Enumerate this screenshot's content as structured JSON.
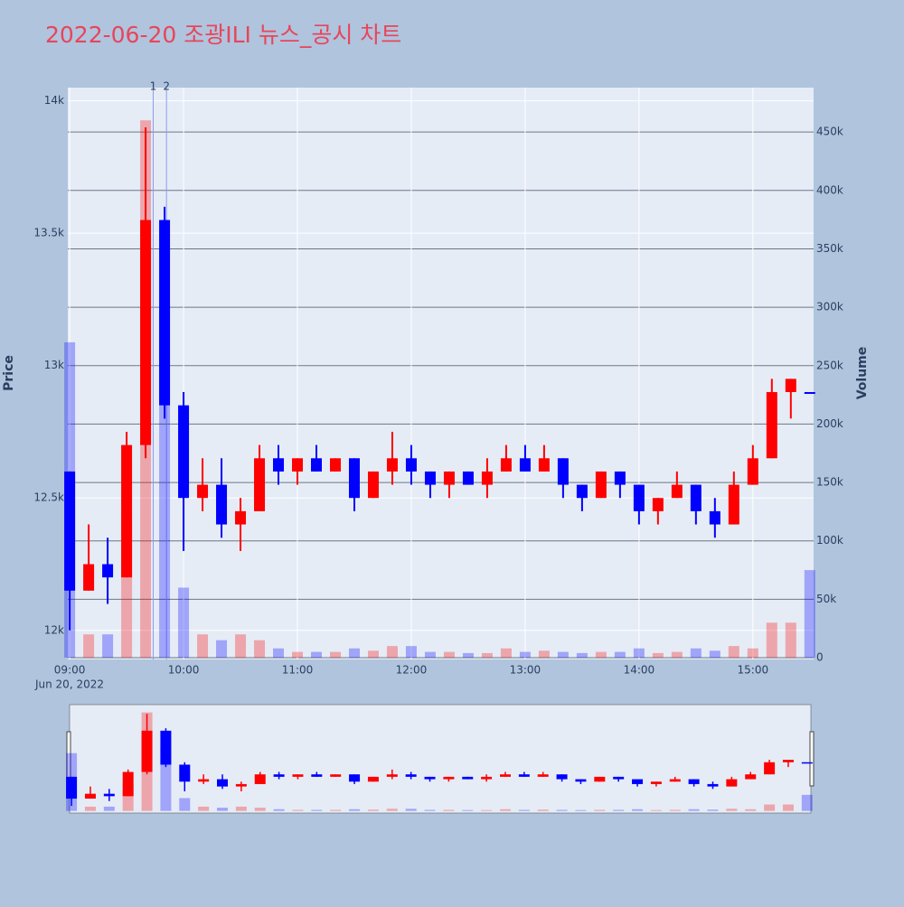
{
  "chart_data": {
    "type": "candlestick",
    "title": "2022-06-20 조광ILI 뉴스_공시 차트",
    "ylabel": "Price",
    "y2label": "Volume",
    "x_date_label": "Jun 20, 2022",
    "x": [
      "09:00",
      "09:10",
      "09:20",
      "09:30",
      "09:40",
      "09:50",
      "10:00",
      "10:10",
      "10:20",
      "10:30",
      "10:40",
      "10:50",
      "11:00",
      "11:10",
      "11:20",
      "11:30",
      "11:40",
      "11:50",
      "12:00",
      "12:10",
      "12:20",
      "12:30",
      "12:40",
      "12:50",
      "13:00",
      "13:10",
      "13:20",
      "13:30",
      "13:40",
      "13:50",
      "14:00",
      "14:10",
      "14:20",
      "14:30",
      "14:40",
      "14:50",
      "15:00",
      "15:10",
      "15:20",
      "15:30"
    ],
    "open": [
      12600,
      12150,
      12250,
      12200,
      12700,
      13550,
      12850,
      12500,
      12550,
      12400,
      12450,
      12650,
      12600,
      12650,
      12600,
      12650,
      12500,
      12600,
      12650,
      12600,
      12550,
      12600,
      12550,
      12600,
      12650,
      12600,
      12650,
      12550,
      12500,
      12600,
      12550,
      12450,
      12500,
      12550,
      12450,
      12400,
      12550,
      12650,
      12900,
      12900
    ],
    "high": [
      12600,
      12400,
      12350,
      12750,
      13900,
      13600,
      12900,
      12650,
      12650,
      12500,
      12700,
      12700,
      12650,
      12700,
      12650,
      12650,
      12600,
      12750,
      12700,
      12600,
      12600,
      12600,
      12650,
      12700,
      12700,
      12700,
      12650,
      12550,
      12600,
      12600,
      12550,
      12500,
      12600,
      12550,
      12500,
      12600,
      12700,
      12950,
      12950,
      12900
    ],
    "low": [
      12000,
      12150,
      12100,
      12200,
      12650,
      12800,
      12300,
      12450,
      12350,
      12300,
      12450,
      12550,
      12550,
      12600,
      12600,
      12450,
      12500,
      12550,
      12550,
      12500,
      12500,
      12550,
      12500,
      12600,
      12600,
      12600,
      12500,
      12450,
      12500,
      12500,
      12400,
      12400,
      12500,
      12400,
      12350,
      12400,
      12550,
      12650,
      12800,
      12900
    ],
    "close": [
      12150,
      12250,
      12200,
      12700,
      13550,
      12850,
      12500,
      12550,
      12400,
      12450,
      12650,
      12600,
      12650,
      12600,
      12650,
      12500,
      12600,
      12650,
      12600,
      12550,
      12600,
      12550,
      12600,
      12650,
      12600,
      12650,
      12550,
      12500,
      12600,
      12550,
      12450,
      12500,
      12550,
      12450,
      12400,
      12550,
      12650,
      12900,
      12950,
      12900
    ],
    "volume": [
      270000,
      20000,
      20000,
      120000,
      460000,
      300000,
      60000,
      20000,
      15000,
      20000,
      15000,
      8000,
      5000,
      5000,
      5000,
      8000,
      6000,
      10000,
      10000,
      5000,
      5000,
      4000,
      4000,
      8000,
      5000,
      6000,
      5000,
      4000,
      5000,
      5000,
      8000,
      4000,
      5000,
      8000,
      6000,
      10000,
      8000,
      30000,
      30000,
      75000
    ],
    "increasing_color": "#ff0000",
    "decreasing_color": "#0000ff",
    "xlim": [
      "08:59",
      "15:32"
    ],
    "xticks": [
      "09:00",
      "10:00",
      "11:00",
      "12:00",
      "13:00",
      "14:00",
      "15:00"
    ],
    "ylim": [
      11890,
      14050
    ],
    "yticks": [
      {
        "value": 12000,
        "label": "12k"
      },
      {
        "value": 12500,
        "label": "12.5k"
      },
      {
        "value": 13000,
        "label": "13k"
      },
      {
        "value": 13500,
        "label": "13.5k"
      },
      {
        "value": 14000,
        "label": "14k"
      }
    ],
    "y2lim": [
      -1500,
      488000
    ],
    "y2ticks": [
      0,
      {
        "value": 50000,
        "label": "50k"
      },
      {
        "value": 100000,
        "label": "100k"
      },
      {
        "value": 150000,
        "label": "150k"
      },
      {
        "value": 200000,
        "label": "200k"
      },
      {
        "value": 250000,
        "label": "250k"
      },
      {
        "value": 300000,
        "label": "300k"
      },
      {
        "value": 350000,
        "label": "350k"
      },
      {
        "value": 400000,
        "label": "400k"
      },
      {
        "value": 450000,
        "label": "450k"
      }
    ],
    "annotations": [
      {
        "x": "09:44",
        "text": "1"
      },
      {
        "x": "09:51",
        "text": "2"
      }
    ],
    "rangeslider": true
  }
}
